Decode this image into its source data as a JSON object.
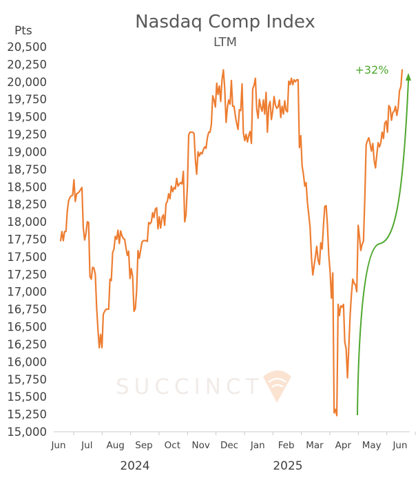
{
  "chart_data": {
    "type": "line",
    "title": "Nasdaq Comp Index",
    "subtitle": "LTM",
    "ylabel": "Pts",
    "ylim": [
      15000,
      20500
    ],
    "yticks": [
      "20,500",
      "20,250",
      "20,000",
      "19,750",
      "19,500",
      "19,250",
      "19,000",
      "18,750",
      "18,500",
      "18,250",
      "18,000",
      "17,750",
      "17,500",
      "17,250",
      "17,000",
      "16,750",
      "16,500",
      "16,250",
      "16,000",
      "15,750",
      "15,500",
      "15,250",
      "15,000"
    ],
    "xticks": [
      "Jun",
      "Jul",
      "Aug",
      "Sep",
      "Oct",
      "Nov",
      "Dec",
      "Jan",
      "Feb",
      "Mar",
      "Apr",
      "May",
      "Jun"
    ],
    "years": [
      "2024",
      "2025"
    ],
    "annotation": "+32%",
    "watermark": "SUCCINCT",
    "line_color": "#ed7d31",
    "annotation_color": "#4ea72e",
    "series": [
      {
        "values": [
          17730,
          17860,
          17730,
          17860,
          17860,
          18150,
          18300,
          18350,
          18370,
          18380,
          18600,
          18290,
          18400,
          18410,
          18430,
          18460,
          18490,
          17920,
          17740,
          17830,
          18000,
          17990,
          17220,
          17180,
          17350,
          17340,
          17250,
          16780,
          16450,
          16200,
          16390,
          16200,
          16680,
          16720,
          16750,
          16750,
          16750,
          17180,
          17160,
          17560,
          17610,
          17790,
          17750,
          17880,
          17690,
          17870,
          17800,
          17760,
          17750,
          17630,
          17520,
          17580,
          17190,
          17330,
          17220,
          16720,
          16760,
          17010,
          17590,
          17480,
          17600,
          17710,
          17730,
          17730,
          17730,
          17720,
          17990,
          17970,
          18000,
          18130,
          18060,
          18180,
          18200,
          17900,
          18070,
          17910,
          18060,
          18100,
          17950,
          18260,
          18290,
          18400,
          18330,
          18510,
          18430,
          18490,
          18470,
          18620,
          18510,
          18540,
          18560,
          18540,
          18720,
          18000,
          18100,
          18500,
          19240,
          19280,
          19280,
          19280,
          19260,
          18890,
          18680,
          19000,
          18940,
          18990,
          18970,
          19030,
          19070,
          19050,
          19200,
          19280,
          19280,
          19390,
          19800,
          19740,
          19640,
          19980,
          19820,
          19940,
          19720,
          20030,
          20170,
          19910,
          19420,
          19630,
          19740,
          19680,
          20020,
          19650,
          19650,
          19510,
          19400,
          19320,
          19600,
          19590,
          19970,
          19270,
          19160,
          19250,
          19140,
          19230,
          19290,
          19120,
          19900,
          19950,
          20050,
          19610,
          19480,
          19750,
          19640,
          19580,
          19740,
          19540,
          19850,
          19280,
          19650,
          19720,
          19460,
          19590,
          19790,
          19670,
          19620,
          19640,
          19740,
          19490,
          19650,
          19540,
          19730,
          19590,
          19570,
          20010,
          19960,
          20050,
          19960,
          20030,
          20000,
          20030,
          20030,
          19060,
          19230,
          18800,
          18680,
          18510,
          18560,
          18280,
          18100,
          17920,
          17490,
          17240,
          17370,
          17510,
          17650,
          17450,
          17390,
          17700,
          17610,
          17950,
          18220,
          18230,
          17950,
          17530,
          17280,
          16910,
          17270,
          15270,
          15320,
          15230,
          16820,
          16660,
          16800,
          16780,
          16820,
          16280,
          16190,
          15770,
          16200,
          16660,
          16970,
          17180,
          17120,
          17100,
          17000,
          17950,
          17790,
          17590,
          17680,
          17720,
          18350,
          19100,
          19160,
          19200,
          19110,
          19010,
          19120,
          18880,
          18770,
          18960,
          19130,
          19070,
          19130,
          19280,
          19190,
          19410,
          19440,
          19280,
          19660,
          19630,
          19450,
          19560,
          19580,
          19650,
          19520,
          19630,
          19870,
          19930,
          20170
        ]
      }
    ]
  }
}
